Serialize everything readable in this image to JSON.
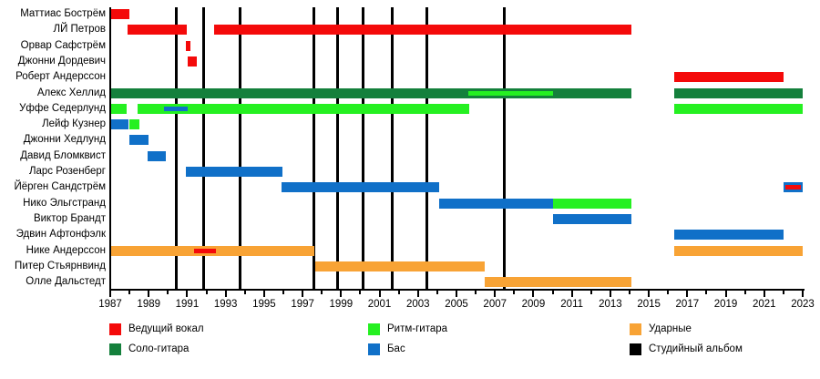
{
  "chart_data": {
    "type": "timeline",
    "description": "Band members timeline (gantt-style), roles by color, vertical black lines mark studio albums",
    "x_axis": {
      "start": 1987,
      "end": 2023,
      "tick_step": 1,
      "label_step": 2,
      "tick_labels": [
        "1987",
        "1989",
        "1991",
        "1993",
        "1995",
        "1997",
        "1999",
        "2001",
        "2003",
        "2005",
        "2007",
        "2009",
        "2011",
        "2013",
        "2015",
        "2017",
        "2019",
        "2021",
        "2023"
      ]
    },
    "roles": {
      "lead_vocals": "#f40a0a",
      "lead_guitar": "#14803c",
      "rhythm_guitar": "#25f021",
      "bass": "#1070c8",
      "drums": "#f8a335",
      "album": "#000000"
    },
    "members": [
      {
        "name": "Маттиас Бострём",
        "bars": [
          {
            "start": 1987.05,
            "end": 1988.0,
            "role": "lead_vocals"
          }
        ],
        "overlays": []
      },
      {
        "name": "ЛЙ Петров",
        "bars": [
          {
            "start": 1987.9,
            "end": 1991.0,
            "role": "lead_vocals"
          },
          {
            "start": 1992.4,
            "end": 2014.1,
            "role": "lead_vocals"
          }
        ],
        "overlays": []
      },
      {
        "name": "Орвар Сафстрём",
        "bars": [
          {
            "start": 1990.95,
            "end": 1991.15,
            "role": "lead_vocals"
          }
        ],
        "overlays": []
      },
      {
        "name": "Джонни Дордевич",
        "bars": [
          {
            "start": 1991.02,
            "end": 1991.5,
            "role": "lead_vocals"
          }
        ],
        "overlays": []
      },
      {
        "name": "Роберт Андерссон",
        "bars": [
          {
            "start": 2016.3,
            "end": 2022.0,
            "role": "lead_vocals"
          }
        ],
        "overlays": []
      },
      {
        "name": "Алекс Хеллид",
        "bars": [
          {
            "start": 1987.05,
            "end": 2014.1,
            "role": "lead_guitar"
          },
          {
            "start": 2016.3,
            "end": 2023.0,
            "role": "lead_guitar"
          }
        ],
        "overlays": [
          {
            "start": 2005.6,
            "end": 2010.0,
            "role": "rhythm_guitar"
          }
        ]
      },
      {
        "name": "Уффе Седерлунд",
        "bars": [
          {
            "start": 1987.05,
            "end": 1987.85,
            "role": "rhythm_guitar"
          },
          {
            "start": 1988.4,
            "end": 2005.65,
            "role": "rhythm_guitar"
          },
          {
            "start": 2016.3,
            "end": 2023.0,
            "role": "rhythm_guitar"
          }
        ],
        "overlays": [
          {
            "start": 1989.8,
            "end": 1991.05,
            "role": "bass"
          }
        ]
      },
      {
        "name": "Лейф Кузнер",
        "bars": [
          {
            "start": 1987.05,
            "end": 1987.95,
            "role": "bass"
          },
          {
            "start": 1987.98,
            "end": 1988.5,
            "role": "rhythm_guitar"
          }
        ],
        "overlays": []
      },
      {
        "name": "Джонни Хедлунд",
        "bars": [
          {
            "start": 1987.98,
            "end": 1989.0,
            "role": "bass"
          }
        ],
        "overlays": []
      },
      {
        "name": "Давид Бломквист",
        "bars": [
          {
            "start": 1988.95,
            "end": 1989.9,
            "role": "bass"
          }
        ],
        "overlays": []
      },
      {
        "name": "Ларс Розенберг",
        "bars": [
          {
            "start": 1990.93,
            "end": 1995.95,
            "role": "bass"
          }
        ],
        "overlays": []
      },
      {
        "name": "Йёрген Сандстрём",
        "bars": [
          {
            "start": 1995.9,
            "end": 2004.1,
            "role": "bass"
          },
          {
            "start": 2022.0,
            "end": 2023.0,
            "role": "bass"
          }
        ],
        "overlays": [
          {
            "start": 2022.1,
            "end": 2022.9,
            "role": "lead_vocals"
          }
        ]
      },
      {
        "name": "Нико Эльгстранд",
        "bars": [
          {
            "start": 2004.1,
            "end": 2010.0,
            "role": "bass"
          },
          {
            "start": 2010.0,
            "end": 2014.1,
            "role": "rhythm_guitar"
          }
        ],
        "overlays": []
      },
      {
        "name": "Виктор Брандт",
        "bars": [
          {
            "start": 2010.0,
            "end": 2014.1,
            "role": "bass"
          }
        ],
        "overlays": []
      },
      {
        "name": "Эдвин Афтонфэлк",
        "bars": [
          {
            "start": 2016.3,
            "end": 2022.0,
            "role": "bass"
          }
        ],
        "overlays": []
      },
      {
        "name": "Нике Андерссон",
        "bars": [
          {
            "start": 1987.05,
            "end": 1997.6,
            "role": "drums"
          },
          {
            "start": 2016.3,
            "end": 2023.0,
            "role": "drums"
          }
        ],
        "overlays": [
          {
            "start": 1991.35,
            "end": 1992.5,
            "role": "lead_vocals"
          }
        ]
      },
      {
        "name": "Питер Стьярнвинд",
        "bars": [
          {
            "start": 1997.65,
            "end": 2006.45,
            "role": "drums"
          }
        ],
        "overlays": []
      },
      {
        "name": "Олле Дальстедт",
        "bars": [
          {
            "start": 2006.45,
            "end": 2014.1,
            "role": "drums"
          }
        ],
        "overlays": []
      }
    ],
    "albums": [
      1990.45,
      1991.85,
      1993.75,
      1997.6,
      1998.8,
      2000.15,
      2001.65,
      2003.45,
      2007.5
    ],
    "legend": {
      "columns": [
        [
          {
            "label": "Ведущий вокал",
            "role": "lead_vocals"
          },
          {
            "label": "Соло-гитара",
            "role": "lead_guitar"
          }
        ],
        [
          {
            "label": "Ритм-гитара",
            "role": "rhythm_guitar"
          },
          {
            "label": "Бас",
            "role": "bass"
          }
        ],
        [
          {
            "label": "Ударные",
            "role": "drums"
          },
          {
            "label": "Студийный альбом",
            "role": "album"
          }
        ]
      ]
    }
  }
}
